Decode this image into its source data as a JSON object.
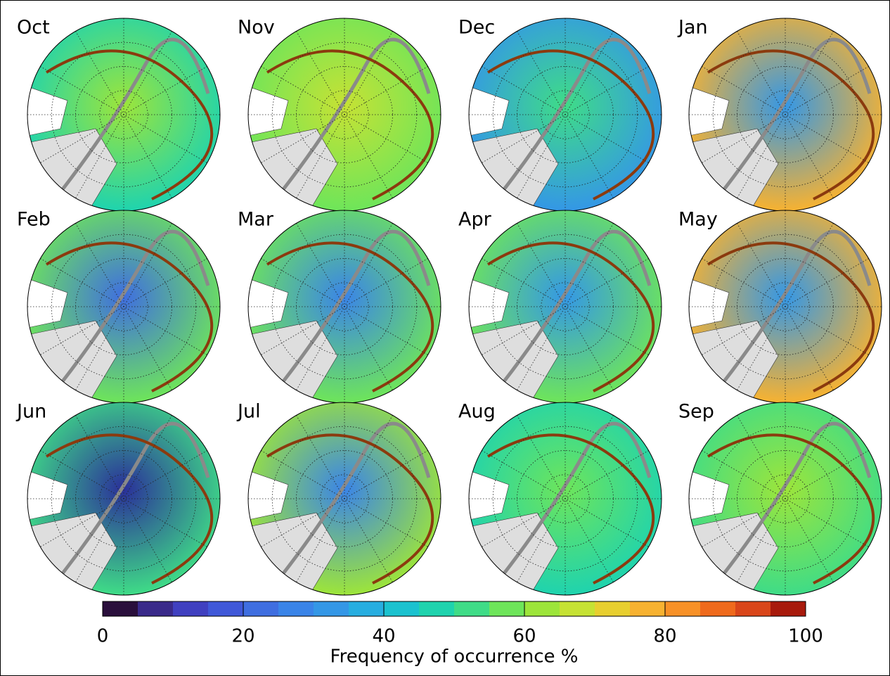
{
  "panels": [
    {
      "label": "Oct",
      "center_color": "#9de53a",
      "edge_color": "#1fd3ae"
    },
    {
      "label": "Nov",
      "center_color": "#c6e234",
      "edge_color": "#6ee55a"
    },
    {
      "label": "Dec",
      "center_color": "#3fdc87",
      "edge_color": "#3497e6"
    },
    {
      "label": "Jan",
      "center_color": "#3497e6",
      "edge_color": "#f7b231"
    },
    {
      "label": "Feb",
      "center_color": "#3f6ee0",
      "edge_color": "#6ee55a"
    },
    {
      "label": "Mar",
      "center_color": "#3a84e8",
      "edge_color": "#6ee55a"
    },
    {
      "label": "Apr",
      "center_color": "#3497e6",
      "edge_color": "#6ee55a"
    },
    {
      "label": "May",
      "center_color": "#3497e6",
      "edge_color": "#f7b231"
    },
    {
      "label": "Jun",
      "center_color": "#2a2f9a",
      "edge_color": "#3fdc87"
    },
    {
      "label": "Jul",
      "center_color": "#3a84e8",
      "edge_color": "#9de53a"
    },
    {
      "label": "Aug",
      "center_color": "#6ee55a",
      "edge_color": "#1fd3ae"
    },
    {
      "label": "Sep",
      "center_color": "#9de53a",
      "edge_color": "#3fdc87"
    }
  ],
  "colorbar": {
    "label": "Frequency of occurrence %",
    "lim": [
      0,
      100
    ],
    "ticks": [
      0,
      20,
      40,
      60,
      80,
      100
    ],
    "colors": [
      "#2a0f3c",
      "#3a2a8a",
      "#4040c0",
      "#4058d8",
      "#3f6ee0",
      "#3a84e8",
      "#3497e6",
      "#27aee0",
      "#1bc2cf",
      "#1fd3ae",
      "#3fdc87",
      "#6ee55a",
      "#9de53a",
      "#c6e234",
      "#e8cf30",
      "#f7b231",
      "#f89127",
      "#ef6a1c",
      "#d9461a",
      "#a81a0c"
    ]
  }
}
